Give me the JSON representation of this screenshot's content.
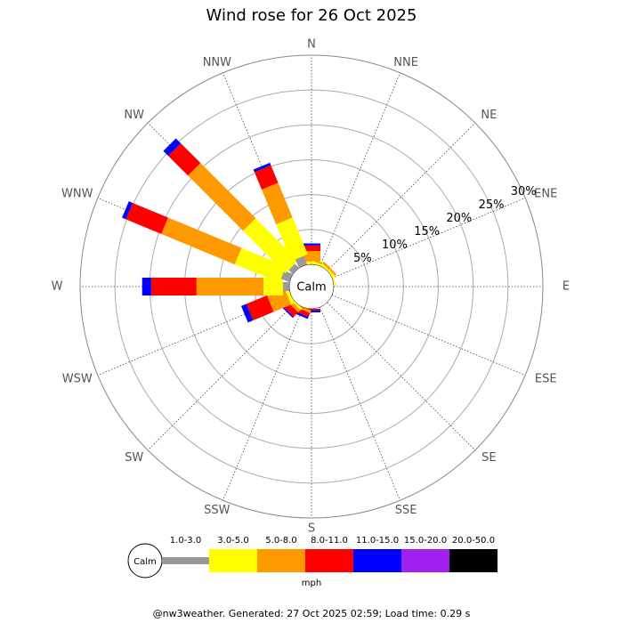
{
  "chart_data": {
    "type": "windrose",
    "title": "Wind rose for 26 Oct 2025",
    "directions": [
      "N",
      "NNE",
      "NE",
      "ENE",
      "E",
      "ESE",
      "SE",
      "SSE",
      "S",
      "SSW",
      "SW",
      "WSW",
      "W",
      "WNW",
      "NW",
      "NNW"
    ],
    "calm_label": "Calm",
    "rlim": [
      0,
      30
    ],
    "rticks": [
      {
        "value": 5,
        "label": "5%"
      },
      {
        "value": 10,
        "label": "10%"
      },
      {
        "value": 15,
        "label": "15%"
      },
      {
        "value": 20,
        "label": "20%"
      },
      {
        "value": 25,
        "label": "25%"
      },
      {
        "value": 30,
        "label": "30%"
      }
    ],
    "unit": "mph",
    "series": [
      {
        "name": "1.0-3.0",
        "color": "#999999",
        "values": [
          0,
          0,
          0,
          0,
          0,
          0,
          0,
          0,
          0,
          0,
          0,
          0,
          0.9,
          1.3,
          0.8,
          1.3
        ]
      },
      {
        "name": "3.0-5.0",
        "color": "#ffff00",
        "values": [
          0.4,
          0.3,
          0.3,
          0.2,
          0,
          0,
          0,
          0,
          0,
          0,
          0.3,
          0.5,
          2.8,
          6.9,
          8.6,
          5.7
        ]
      },
      {
        "name": "5.0-8.0",
        "color": "#ff9900",
        "values": [
          1.5,
          0.2,
          0.3,
          0,
          0,
          0,
          0,
          0,
          0,
          0.4,
          0.5,
          2.7,
          9.6,
          11.4,
          11.2,
          5.4
        ]
      },
      {
        "name": "8.0-11.0",
        "color": "#ff0000",
        "values": [
          0.8,
          0,
          0,
          0,
          0,
          0,
          0,
          0,
          0.2,
          0.6,
          0.9,
          3.2,
          6.5,
          5.5,
          4.0,
          2.7
        ]
      },
      {
        "name": "11.0-15.0",
        "color": "#0000ff",
        "values": [
          0.3,
          0,
          0,
          0,
          0,
          0,
          0,
          0,
          0.3,
          0.3,
          0.2,
          0.8,
          1.3,
          0.6,
          1.0,
          0.4
        ]
      },
      {
        "name": "15.0-20.0",
        "color": "#a020f0",
        "values": [
          0,
          0,
          0,
          0,
          0,
          0,
          0,
          0,
          0,
          0,
          0,
          0,
          0,
          0,
          0,
          0
        ]
      },
      {
        "name": "20.0-50.0",
        "color": "#000000",
        "values": [
          0,
          0,
          0,
          0,
          0,
          0,
          0,
          0,
          0,
          0,
          0,
          0,
          0,
          0,
          0,
          0
        ]
      }
    ]
  },
  "footer": "@nw3weather. Generated: 27 Oct 2025 02:59; Load time: 0.29 s"
}
